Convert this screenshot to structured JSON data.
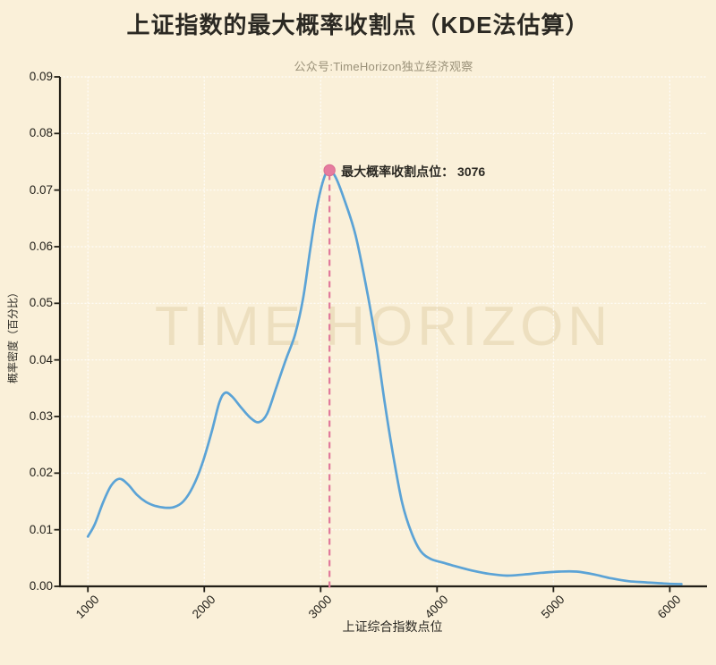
{
  "page": {
    "background": "#FAF0D9"
  },
  "chart_data": {
    "type": "line",
    "title": "上证指数的最大概率收割点（KDE法估算）",
    "subtitle": "公众号:TimeHorizon独立经济观察",
    "xlabel": "上证综合指数点位",
    "ylabel": "概率密度（百分比）",
    "watermark": "TIME HORIZON",
    "grid": "dotted-both-axes",
    "legend": "none",
    "xlim": [
      760,
      6320
    ],
    "ylim": [
      0,
      0.09
    ],
    "x_ticks": [
      "1000",
      "2000",
      "3000",
      "4000",
      "5000",
      "6000"
    ],
    "y_ticks": [
      "0.00",
      "0.01",
      "0.02",
      "0.03",
      "0.04",
      "0.05",
      "0.06",
      "0.07",
      "0.08",
      "0.09"
    ],
    "annotation": {
      "text": "最大概率收割点位： 3076",
      "label": "最大概率收割点位",
      "value": 3076,
      "x": 3076,
      "y": 0.0735
    },
    "marker": {
      "x": 3076,
      "y": 0.0735,
      "radius": 6.2
    },
    "series": [
      {
        "points": [
          [
            1000,
            0.0088
          ],
          [
            1060,
            0.011
          ],
          [
            1130,
            0.0148
          ],
          [
            1200,
            0.0178
          ],
          [
            1270,
            0.019
          ],
          [
            1340,
            0.0181
          ],
          [
            1420,
            0.0162
          ],
          [
            1500,
            0.0149
          ],
          [
            1580,
            0.0142
          ],
          [
            1660,
            0.0139
          ],
          [
            1740,
            0.014
          ],
          [
            1820,
            0.015
          ],
          [
            1900,
            0.0175
          ],
          [
            1980,
            0.0215
          ],
          [
            2060,
            0.027
          ],
          [
            2130,
            0.0325
          ],
          [
            2180,
            0.0342
          ],
          [
            2240,
            0.0335
          ],
          [
            2320,
            0.0315
          ],
          [
            2400,
            0.0297
          ],
          [
            2470,
            0.029
          ],
          [
            2540,
            0.0305
          ],
          [
            2620,
            0.0352
          ],
          [
            2700,
            0.04
          ],
          [
            2780,
            0.0445
          ],
          [
            2850,
            0.051
          ],
          [
            2910,
            0.0595
          ],
          [
            2970,
            0.0672
          ],
          [
            3030,
            0.0722
          ],
          [
            3076,
            0.0735
          ],
          [
            3130,
            0.0722
          ],
          [
            3200,
            0.0685
          ],
          [
            3300,
            0.062
          ],
          [
            3400,
            0.052
          ],
          [
            3480,
            0.0425
          ],
          [
            3550,
            0.0325
          ],
          [
            3620,
            0.0235
          ],
          [
            3700,
            0.0148
          ],
          [
            3780,
            0.0095
          ],
          [
            3860,
            0.0062
          ],
          [
            3950,
            0.0048
          ],
          [
            4050,
            0.0042
          ],
          [
            4150,
            0.0036
          ],
          [
            4300,
            0.0028
          ],
          [
            4450,
            0.0022
          ],
          [
            4600,
            0.0019
          ],
          [
            4750,
            0.0021
          ],
          [
            4900,
            0.0024
          ],
          [
            5050,
            0.0026
          ],
          [
            5200,
            0.0026
          ],
          [
            5350,
            0.0021
          ],
          [
            5500,
            0.0014
          ],
          [
            5650,
            0.0009
          ],
          [
            5800,
            0.0007
          ],
          [
            5950,
            0.0005
          ],
          [
            6100,
            0.0004
          ]
        ]
      }
    ],
    "colors": {
      "background": "#FAF0D9",
      "curve": "#5BA3D6",
      "marker_fill": "#E67C9F",
      "marker_edge": "#D96D92",
      "dashed_line": "#E0799B",
      "grid": "rgba(255,255,255,0.85)",
      "spine": "#221F17",
      "title_text": "#2B2923",
      "subtitle_text": "#9A9179",
      "tick_text": "#23211B",
      "watermark_text": "rgba(193,166,101,0.22)"
    }
  }
}
